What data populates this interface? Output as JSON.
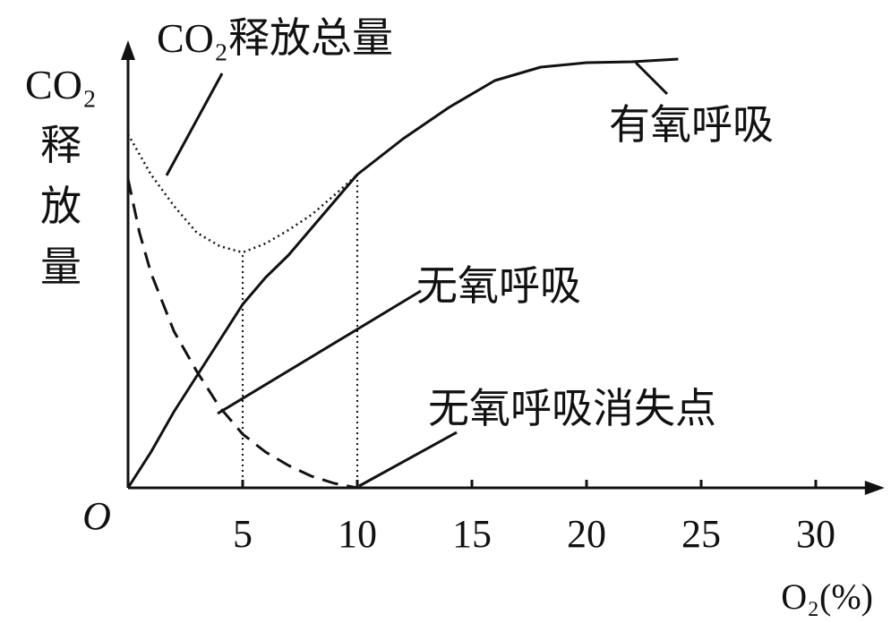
{
  "chart_data": {
    "type": "line",
    "y_label": "CO₂释放量",
    "x_label": "O₂(%)",
    "xlim": [
      0,
      33
    ],
    "ylim": [
      0,
      100
    ],
    "xticks": [
      {
        "value": 0,
        "label": "O"
      },
      5,
      10,
      15,
      20,
      25,
      30
    ],
    "series": [
      {
        "name": "有氧呼吸",
        "color": "#111111",
        "style": "solid",
        "x": [
          0,
          1,
          2,
          3,
          4,
          5,
          6,
          7,
          8,
          9,
          10,
          12,
          14,
          16,
          18,
          20,
          22,
          24
        ],
        "values": [
          0,
          8,
          17,
          25,
          33,
          41,
          47,
          52,
          58,
          64,
          70,
          78,
          85,
          91,
          94,
          95,
          95.2,
          95.8
        ]
      },
      {
        "name": "无氧呼吸",
        "color": "#111111",
        "style": "dashed",
        "x": [
          0,
          0.5,
          1,
          2,
          3,
          4,
          5,
          6,
          7,
          8,
          9,
          10
        ],
        "values": [
          69,
          57,
          48,
          35,
          26,
          18,
          12,
          8,
          5,
          2.6,
          1,
          0
        ]
      },
      {
        "name": "CO₂释放总量",
        "color": "#111111",
        "style": "dotted",
        "x": [
          0,
          1,
          2,
          3,
          4,
          5,
          6,
          7,
          8,
          9,
          10
        ],
        "values": [
          79,
          70,
          63,
          57,
          54,
          52.6,
          54.6,
          57.6,
          61,
          65.4,
          70
        ]
      }
    ],
    "reference_lines": [
      {
        "x": 5,
        "y": 52.6
      },
      {
        "x": 10,
        "y": 70
      }
    ],
    "annotations": [
      {
        "text": "无氧呼吸消失点",
        "x": 10,
        "y": 0
      }
    ]
  }
}
